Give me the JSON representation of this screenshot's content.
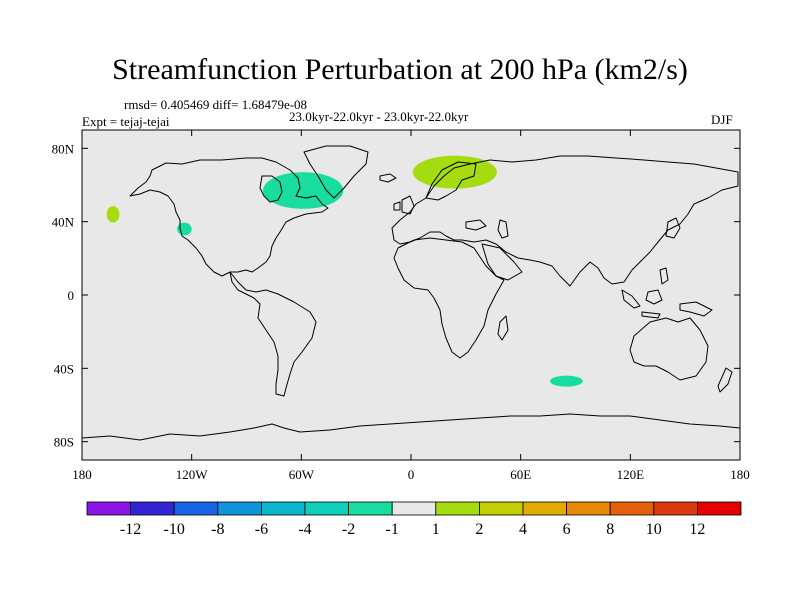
{
  "header": {
    "title": "Streamfunction Perturbation at 200 hPa (km2/s)",
    "stats": "rmsd= 0.405469 diff= 1.68479e-08",
    "periods": "23.0kyr-22.0kyr - 23.0kyr-22.0kyr",
    "experiment": "Expt = tejaj-tejai",
    "season": "DJF"
  },
  "chart_data": {
    "type": "heatmap",
    "title": "Streamfunction Perturbation at 200 hPa (km2/s)",
    "projection": "cylindrical equidistant",
    "xlim": [
      -180,
      180
    ],
    "ylim": [
      -90,
      90
    ],
    "x_ticks": [
      {
        "value": -180,
        "label": "180"
      },
      {
        "value": -120,
        "label": "120W"
      },
      {
        "value": -60,
        "label": "60W"
      },
      {
        "value": 0,
        "label": "0"
      },
      {
        "value": 60,
        "label": "60E"
      },
      {
        "value": 120,
        "label": "120E"
      },
      {
        "value": 180,
        "label": "180"
      }
    ],
    "y_ticks": [
      {
        "value": 80,
        "label": "80N"
      },
      {
        "value": 40,
        "label": "40N"
      },
      {
        "value": 0,
        "label": "0"
      },
      {
        "value": -40,
        "label": "40S"
      },
      {
        "value": -80,
        "label": "80S"
      }
    ],
    "colorbar": {
      "boundaries": [
        "-12",
        "-10",
        "-8",
        "-6",
        "-4",
        "-2",
        "-1",
        "1",
        "2",
        "4",
        "6",
        "8",
        "10",
        "12"
      ],
      "colors": [
        "#8a16e6",
        "#3424d4",
        "#1864e4",
        "#0f94dc",
        "#0cb6cc",
        "#10cebc",
        "#18dca0",
        "#e8e8e8",
        "#a4dc10",
        "#c4cc04",
        "#e0ac04",
        "#e88808",
        "#e4600c",
        "#dc3810",
        "#e40000"
      ]
    },
    "anomalies": [
      {
        "name": "North America / Labrador",
        "center": [
          -59,
          57
        ],
        "radius": [
          22,
          10
        ],
        "value_range": "-2 to -1",
        "color": "#18dca0"
      },
      {
        "name": "Scandinavia / Northern Europe",
        "center": [
          24,
          67
        ],
        "radius": [
          23,
          9
        ],
        "value_range": "1 to 2",
        "color": "#a4dc10"
      },
      {
        "name": "North Pacific",
        "center": [
          -163,
          44
        ],
        "radius": [
          3.5,
          4.5
        ],
        "value_range": "1 to 2",
        "color": "#a4dc10"
      },
      {
        "name": "California coast",
        "center": [
          -124,
          36
        ],
        "radius": [
          4,
          3.5
        ],
        "value_range": "-2 to -1",
        "color": "#18dca0"
      },
      {
        "name": "Southern Indian Ocean",
        "center": [
          85,
          -47
        ],
        "radius": [
          9,
          3
        ],
        "value_range": "-2 to -1",
        "color": "#18dca0"
      }
    ]
  }
}
